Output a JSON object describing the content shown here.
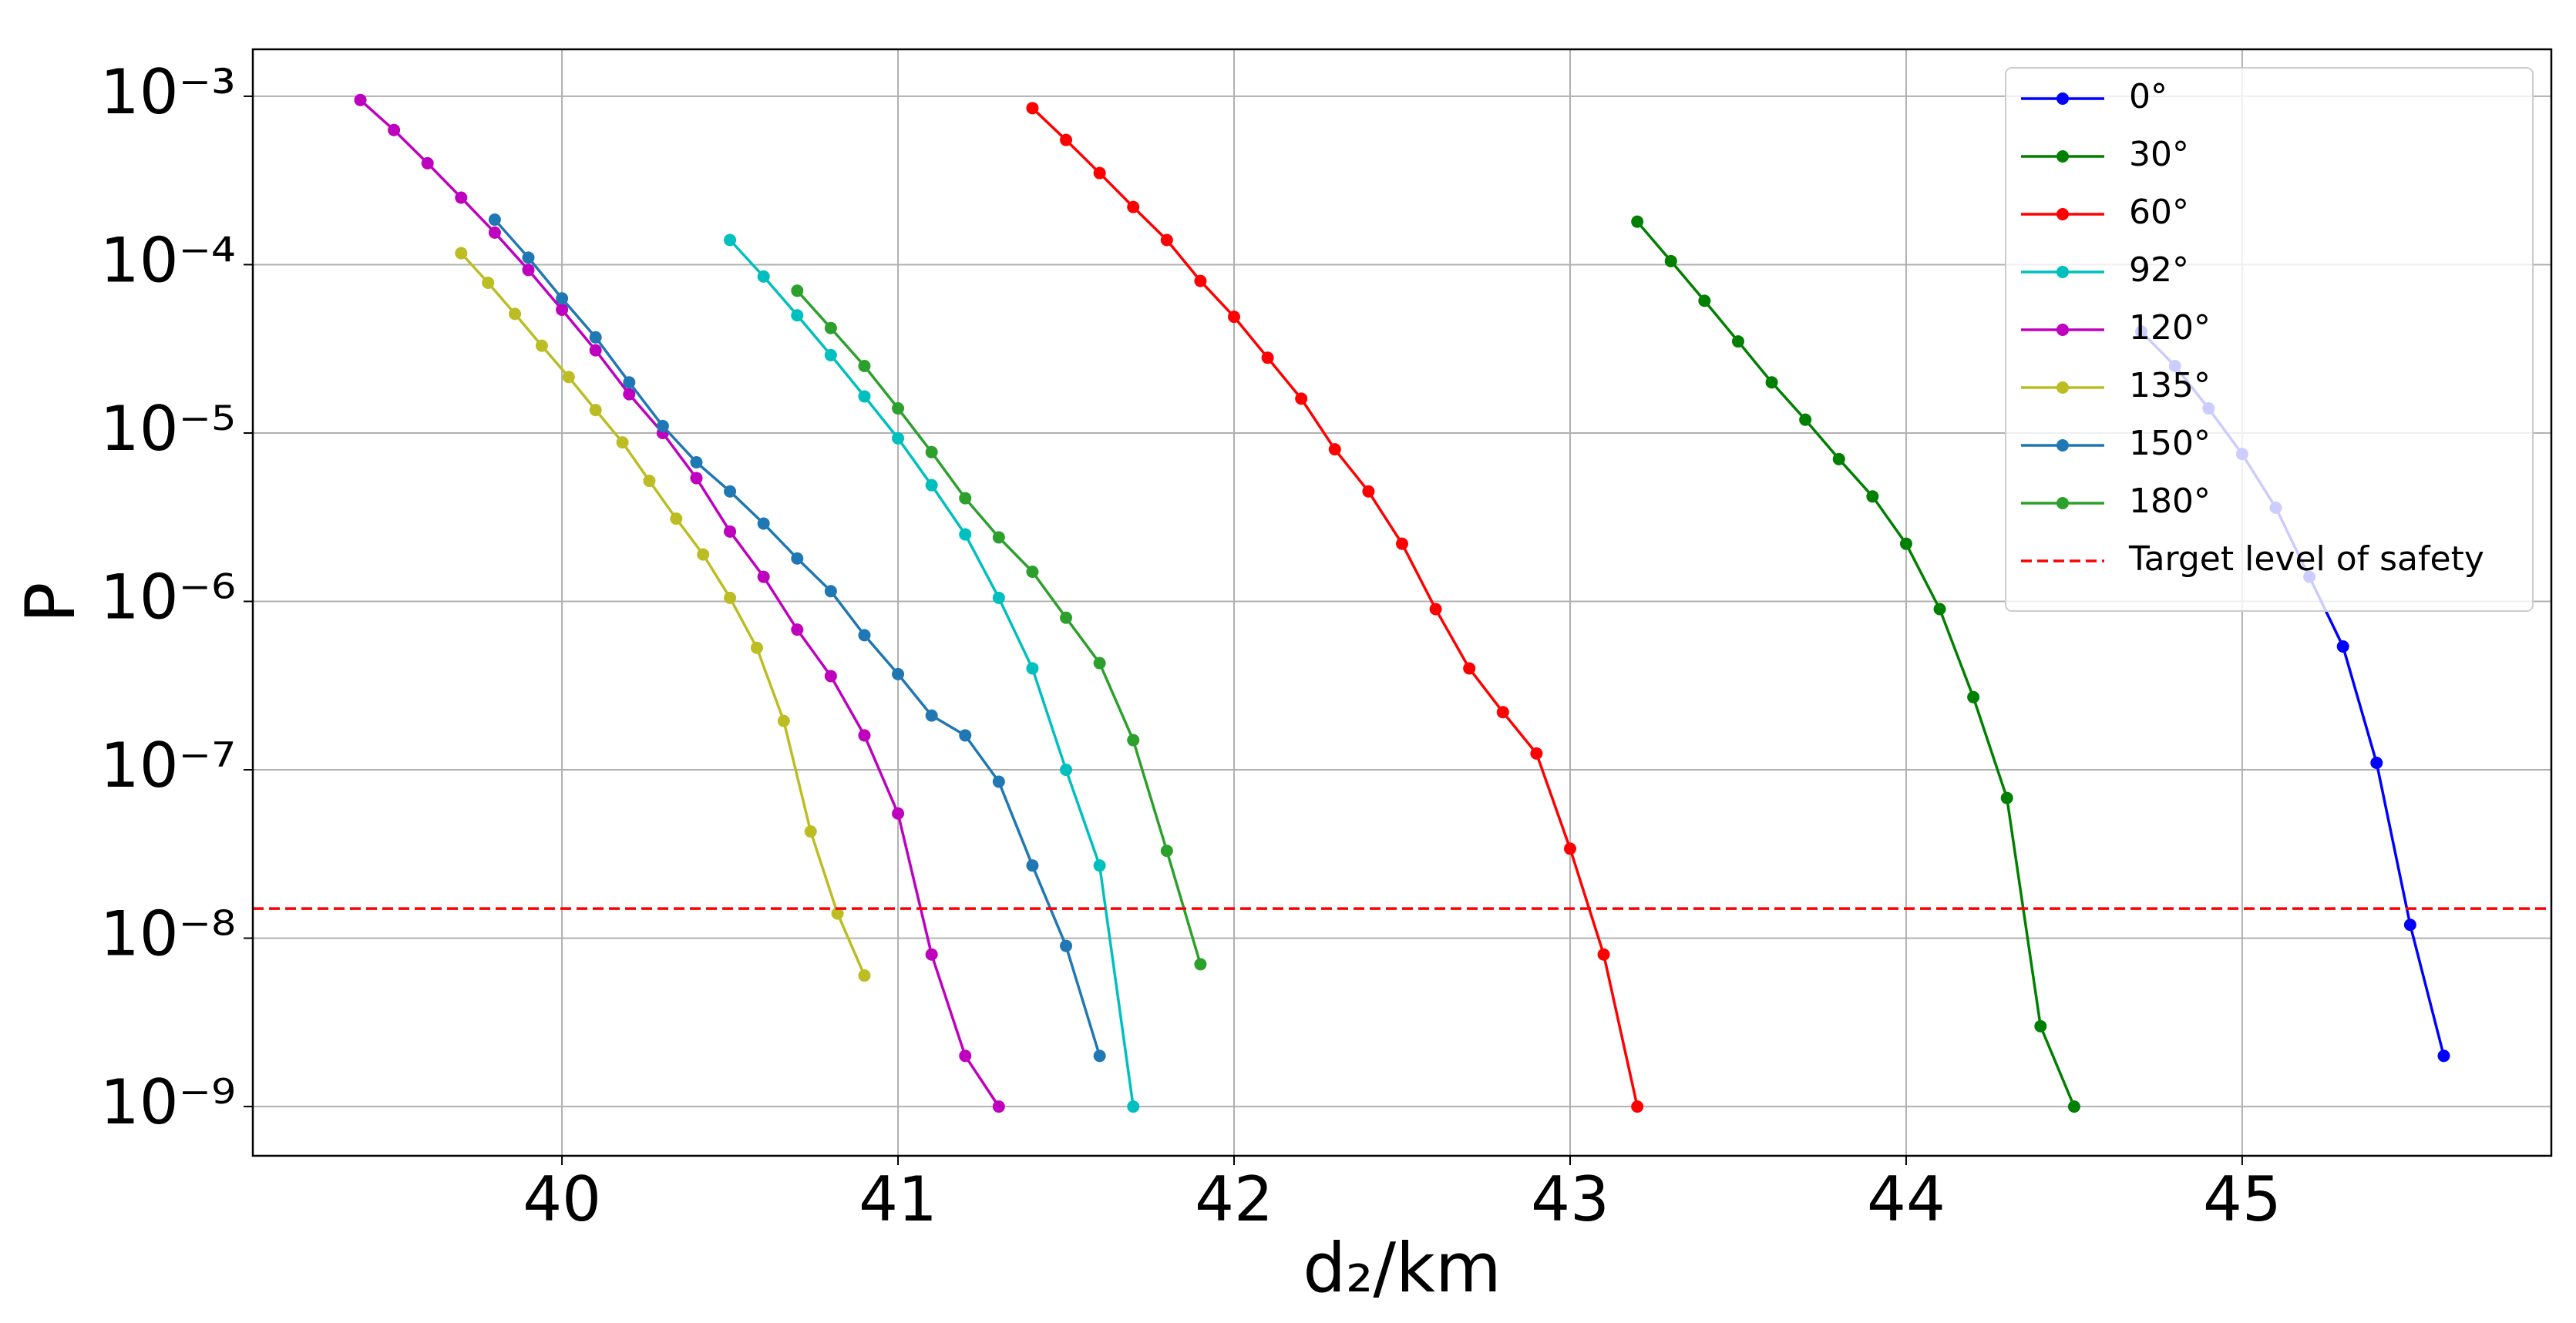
{
  "chart_data": {
    "type": "line",
    "xlabel": "d₂/km",
    "ylabel": "P",
    "log_y": true,
    "grid": true,
    "legend": "upper right",
    "xlim": [
      39.08,
      45.92
    ],
    "xticks": [
      40,
      41,
      42,
      43,
      44,
      45
    ],
    "ylim": [
      5.1e-10,
      0.0019
    ],
    "yticks": [
      {
        "value": 0.001,
        "label": "10⁻³"
      },
      {
        "value": 0.0001,
        "label": "10⁻⁴"
      },
      {
        "value": 1e-05,
        "label": "10⁻⁵"
      },
      {
        "value": 1e-06,
        "label": "10⁻⁶"
      },
      {
        "value": 1e-07,
        "label": "10⁻⁷"
      },
      {
        "value": 1e-08,
        "label": "10⁻⁸"
      },
      {
        "value": 1e-09,
        "label": "10⁻⁹"
      }
    ],
    "series": [
      {
        "name": "0°",
        "color": "#0000ff",
        "x": [
          44.7,
          44.8,
          44.9,
          45.0,
          45.1,
          45.2,
          45.3,
          45.4,
          45.5,
          45.6
        ],
        "values": [
          4e-05,
          2.5e-05,
          1.4e-05,
          7.5e-06,
          3.6e-06,
          1.4e-06,
          5.4e-07,
          1.1e-07,
          1.2e-08,
          2e-09
        ]
      },
      {
        "name": "30°",
        "color": "#008000",
        "x": [
          43.2,
          43.3,
          43.4,
          43.5,
          43.6,
          43.7,
          43.8,
          43.9,
          44.0,
          44.1,
          44.2,
          44.3,
          44.4,
          44.5
        ],
        "values": [
          0.00018,
          0.000105,
          6.1e-05,
          3.5e-05,
          2e-05,
          1.2e-05,
          7e-06,
          4.2e-06,
          2.2e-06,
          9e-07,
          2.7e-07,
          6.8e-08,
          3e-09,
          1e-09
        ]
      },
      {
        "name": "60°",
        "color": "#ff0000",
        "x": [
          41.4,
          41.5,
          41.6,
          41.7,
          41.8,
          41.9,
          42.0,
          42.1,
          42.2,
          42.3,
          42.4,
          42.5,
          42.6,
          42.7,
          42.8,
          42.9,
          43.0,
          43.1,
          43.2
        ],
        "values": [
          0.00085,
          0.00055,
          0.00035,
          0.00022,
          0.00014,
          8e-05,
          4.9e-05,
          2.8e-05,
          1.6e-05,
          8e-06,
          4.5e-06,
          2.2e-06,
          9e-07,
          4e-07,
          2.2e-07,
          1.25e-07,
          3.4e-08,
          8e-09,
          1e-09
        ]
      },
      {
        "name": "92°",
        "color": "#00bfbf",
        "x": [
          40.5,
          40.6,
          40.7,
          40.8,
          40.9,
          41.0,
          41.1,
          41.2,
          41.3,
          41.4,
          41.5,
          41.6,
          41.7
        ],
        "values": [
          0.00014,
          8.5e-05,
          5e-05,
          2.9e-05,
          1.65e-05,
          9.3e-06,
          4.9e-06,
          2.5e-06,
          1.05e-06,
          4e-07,
          1e-07,
          2.7e-08,
          1e-09
        ]
      },
      {
        "name": "120°",
        "color": "#bf00bf",
        "x": [
          39.4,
          39.5,
          39.6,
          39.7,
          39.8,
          39.9,
          40.0,
          40.1,
          40.2,
          40.3,
          40.4,
          40.5,
          40.6,
          40.7,
          40.8,
          40.9,
          41.0,
          41.1,
          41.2,
          41.3
        ],
        "values": [
          0.00095,
          0.00063,
          0.0004,
          0.00025,
          0.000155,
          9.3e-05,
          5.4e-05,
          3.1e-05,
          1.7e-05,
          1e-05,
          5.4e-06,
          2.6e-06,
          1.4e-06,
          6.8e-07,
          3.6e-07,
          1.6e-07,
          5.5e-08,
          8e-09,
          2e-09,
          1e-09
        ]
      },
      {
        "name": "135°",
        "color": "#bcbd22",
        "x": [
          39.7,
          39.78,
          39.86,
          39.94,
          40.02,
          40.1,
          40.18,
          40.26,
          40.34,
          40.42,
          40.5,
          40.58,
          40.66,
          40.74,
          40.82,
          40.9
        ],
        "values": [
          0.000117,
          7.8e-05,
          5.1e-05,
          3.3e-05,
          2.15e-05,
          1.37e-05,
          8.8e-06,
          5.2e-06,
          3.1e-06,
          1.9e-06,
          1.05e-06,
          5.3e-07,
          1.95e-07,
          4.3e-08,
          1.4e-08,
          6e-09
        ]
      },
      {
        "name": "150°",
        "color": "#1f77b4",
        "x": [
          39.8,
          39.9,
          40.0,
          40.1,
          40.2,
          40.3,
          40.4,
          40.5,
          40.6,
          40.7,
          40.8,
          40.9,
          41.0,
          41.1,
          41.2,
          41.3,
          41.4,
          41.5,
          41.6
        ],
        "values": [
          0.000185,
          0.00011,
          6.3e-05,
          3.7e-05,
          2e-05,
          1.1e-05,
          6.7e-06,
          4.5e-06,
          2.9e-06,
          1.8e-06,
          1.15e-06,
          6.3e-07,
          3.7e-07,
          2.1e-07,
          1.6e-07,
          8.5e-08,
          2.7e-08,
          9e-09,
          2e-09
        ]
      },
      {
        "name": "180°",
        "color": "#2ca02c",
        "x": [
          40.7,
          40.8,
          40.9,
          41.0,
          41.1,
          41.2,
          41.3,
          41.4,
          41.5,
          41.6,
          41.7,
          41.8,
          41.9
        ],
        "values": [
          7e-05,
          4.2e-05,
          2.5e-05,
          1.4e-05,
          7.7e-06,
          4.1e-06,
          2.4e-06,
          1.5e-06,
          8e-07,
          4.3e-07,
          1.5e-07,
          3.3e-08,
          7e-09
        ]
      }
    ],
    "reference_lines": [
      {
        "name": "Target level of safety",
        "color": "#ff0000",
        "linestyle": "dashed",
        "value": 1.5e-08
      }
    ]
  }
}
